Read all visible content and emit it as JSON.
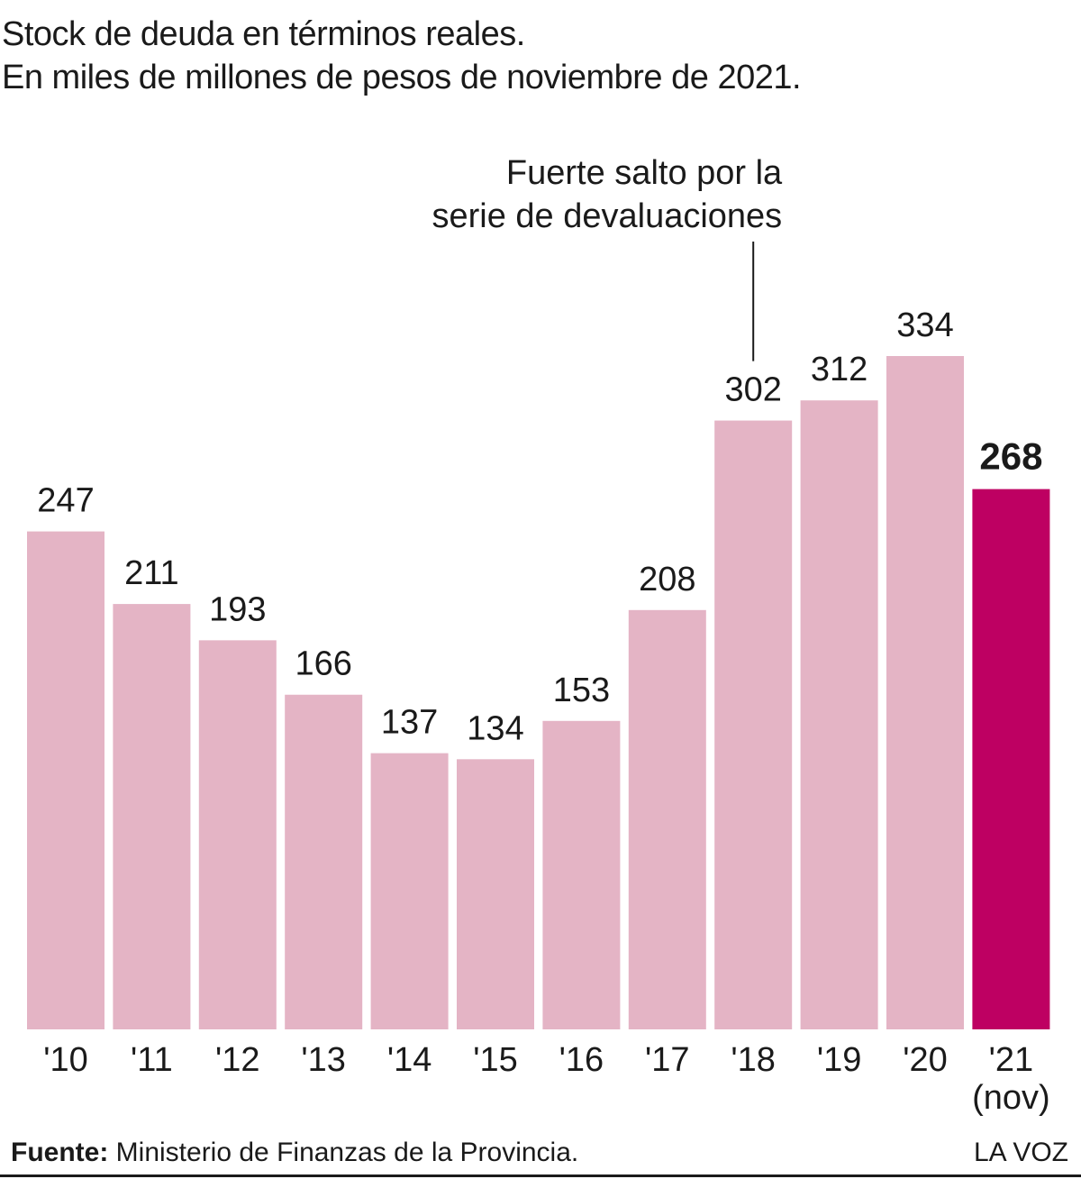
{
  "title": "Stock de deuda en términos reales.",
  "subtitle": "En miles de millones de pesos de noviembre de 2021.",
  "annotation": {
    "lines": [
      "Fuerte salto por la",
      "serie de devaluaciones"
    ],
    "target_category": "'18"
  },
  "source": {
    "label": "Fuente:",
    "text": "Ministerio de Finanzas de la Provincia."
  },
  "brand": "LA VOZ",
  "colors": {
    "bar": "#e4b4c5",
    "highlight": "#be0062",
    "text": "#1a1a1a"
  },
  "chart_data": {
    "type": "bar",
    "categories": [
      "'10",
      "'11",
      "'12",
      "'13",
      "'14",
      "'15",
      "'16",
      "'17",
      "'18",
      "'19",
      "'20",
      "'21"
    ],
    "category_sublabels": [
      "",
      "",
      "",
      "",
      "",
      "",
      "",
      "",
      "",
      "",
      "",
      "(nov)"
    ],
    "values": [
      247,
      211,
      193,
      166,
      137,
      134,
      153,
      208,
      302,
      312,
      334,
      268
    ],
    "highlight_index": 11,
    "ylim": [
      0,
      334
    ],
    "grid": false,
    "legend": "none"
  }
}
